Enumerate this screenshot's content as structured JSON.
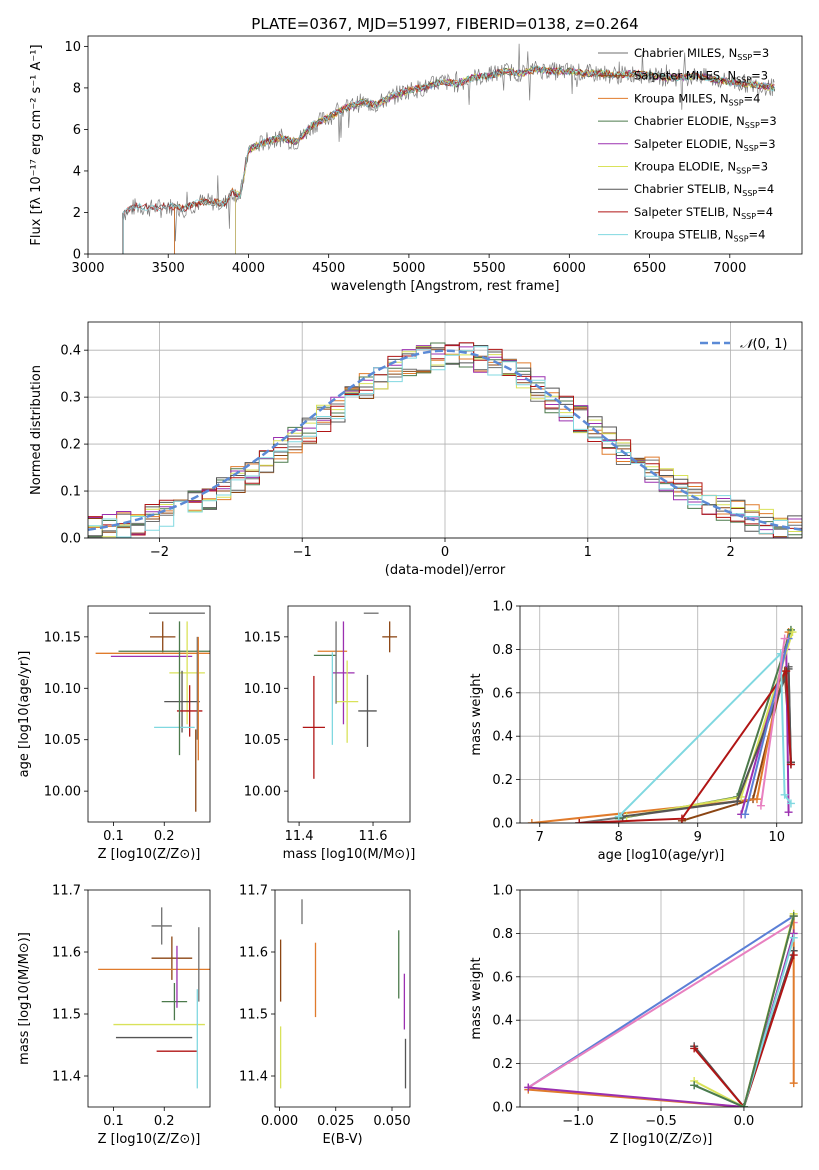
{
  "figure_title": "PLATE=0367, MJD=51997, FIBERID=0138, z=0.264",
  "colors": {
    "Chabrier MILES": "#6f6f6f",
    "Salpeter MILES": "#8b4513",
    "Kroupa MILES": "#e07b2c",
    "Chabrier ELODIE": "#4c7a4c",
    "Salpeter ELODIE": "#9b30b0",
    "Kroupa ELODIE": "#d9e25a",
    "Chabrier STELIB": "#555555",
    "Salpeter STELIB": "#b01515",
    "Kroupa STELIB": "#80d8e0",
    "blue": "#5b7fd6",
    "pink": "#e880c0"
  },
  "chart_data": [
    {
      "id": "spectrum",
      "type": "line",
      "title": "PLATE=0367, MJD=51997, FIBERID=0138, z=0.264",
      "xlabel": "wavelength [Angstrom, rest frame]",
      "ylabel": "Flux [fλ 10⁻¹⁷ erg cm⁻² s⁻¹ A⁻¹]",
      "xlim": [
        3000,
        7450
      ],
      "ylim": [
        0,
        10.5
      ],
      "xticks": [
        3000,
        3500,
        4000,
        4500,
        5000,
        5500,
        6000,
        6500,
        7000
      ],
      "yticks": [
        0,
        2,
        4,
        6,
        8,
        10
      ],
      "legend_position": "top-right",
      "continuum": {
        "x": [
          3230,
          3300,
          3400,
          3500,
          3600,
          3700,
          3800,
          3850,
          3900,
          3950,
          4000,
          4100,
          4200,
          4300,
          4400,
          4500,
          4600,
          4700,
          4800,
          4900,
          5000,
          5100,
          5200,
          5300,
          5400,
          5500,
          5600,
          5700,
          5800,
          5900,
          6000,
          6100,
          6200,
          6300,
          6400,
          6500,
          6600,
          6700,
          6800,
          6900,
          7000,
          7100,
          7200,
          7280
        ],
        "y": [
          2.0,
          2.3,
          2.2,
          2.3,
          2.2,
          2.5,
          2.5,
          2.4,
          3.0,
          2.8,
          5.0,
          5.4,
          5.6,
          5.4,
          6.2,
          6.6,
          7.0,
          7.3,
          7.2,
          7.6,
          7.9,
          8.0,
          8.3,
          8.2,
          8.5,
          8.6,
          8.8,
          8.7,
          8.9,
          8.8,
          8.8,
          8.7,
          8.7,
          8.6,
          8.7,
          8.6,
          8.5,
          8.5,
          8.6,
          8.4,
          8.3,
          8.2,
          8.1,
          8.0
        ]
      },
      "series": [
        {
          "name": "Chabrier MILES, N_SSP=3",
          "start": 3540
        },
        {
          "name": "Salpeter MILES, N_SSP=3",
          "start": 3540
        },
        {
          "name": "Kroupa MILES, N_SSP=4",
          "start": 3540
        },
        {
          "name": "Chabrier ELODIE, N_SSP=3",
          "start": 3920
        },
        {
          "name": "Salpeter ELODIE, N_SSP=3",
          "start": 3920
        },
        {
          "name": "Kroupa ELODIE, N_SSP=3",
          "start": 3920
        },
        {
          "name": "Chabrier STELIB, N_SSP=4",
          "start": 3220
        },
        {
          "name": "Salpeter STELIB, N_SSP=4",
          "start": 3220
        },
        {
          "name": "Kroupa STELIB, N_SSP=4",
          "start": 3220
        }
      ],
      "legend": [
        {
          "label": "Chabrier MILES, N",
          "sub": "SSP",
          "tail": "=3"
        },
        {
          "label": "Salpeter MILES, N",
          "sub": "SSP",
          "tail": "=3"
        },
        {
          "label": "Kroupa MILES, N",
          "sub": "SSP",
          "tail": "=4"
        },
        {
          "label": "Chabrier ELODIE, N",
          "sub": "SSP",
          "tail": "=3"
        },
        {
          "label": "Salpeter ELODIE, N",
          "sub": "SSP",
          "tail": "=3"
        },
        {
          "label": "Kroupa ELODIE, N",
          "sub": "SSP",
          "tail": "=3"
        },
        {
          "label": "Chabrier STELIB, N",
          "sub": "SSP",
          "tail": "=4"
        },
        {
          "label": "Salpeter STELIB, N",
          "sub": "SSP",
          "tail": "=4"
        },
        {
          "label": "Kroupa STELIB, N",
          "sub": "SSP",
          "tail": "=4"
        }
      ]
    },
    {
      "id": "residuals",
      "type": "line",
      "xlabel": "(data-model)/error",
      "ylabel": "Normed distribution",
      "xlim": [
        -2.5,
        2.5
      ],
      "ylim": [
        0,
        0.46
      ],
      "xticks": [
        -2,
        -1,
        0,
        1,
        2
      ],
      "yticks": [
        0.0,
        0.1,
        0.2,
        0.3,
        0.4
      ],
      "grid": true,
      "legend_position": "top-right",
      "legend": "N(0,1)",
      "gaussian": {
        "mean": 0,
        "sigma": 1
      },
      "histograms": {
        "bin_width": 0.1,
        "count": 9
      }
    },
    {
      "id": "age_vs_Z",
      "type": "scatter",
      "xlabel": "Z [log10(Z/Z⊙)]",
      "ylabel": "age  [log10(age/yr)]",
      "xlim": [
        0.05,
        0.29
      ],
      "ylim": [
        9.97,
        10.18
      ],
      "xticks": [
        0.1,
        0.2
      ],
      "yticks": [
        10.0,
        10.05,
        10.1,
        10.15
      ],
      "points": [
        {
          "x": 0.225,
          "y": 10.173,
          "xerr": 0.055,
          "yerr": 0.0
        },
        {
          "x": 0.197,
          "y": 10.15,
          "xerr": 0.025,
          "yerr": 0.015
        },
        {
          "x": 0.185,
          "y": 10.134,
          "xerr": 0.12,
          "yerr": 0.0
        },
        {
          "x": 0.21,
          "y": 10.136,
          "xerr": 0.1,
          "yerr": 0.0
        },
        {
          "x": 0.175,
          "y": 10.131,
          "xerr": 0.08,
          "yerr": 0.0
        },
        {
          "x": 0.245,
          "y": 10.115,
          "xerr": 0.035,
          "yerr": 0.05
        },
        {
          "x": 0.235,
          "y": 10.087,
          "xerr": 0.035,
          "yerr": 0.03
        },
        {
          "x": 0.25,
          "y": 10.078,
          "xerr": 0.025,
          "yerr": 0.025
        },
        {
          "x": 0.22,
          "y": 10.062,
          "xerr": 0.04,
          "yerr": 0.0
        },
        {
          "x": 0.265,
          "y": 10.1,
          "xerr": 0.0,
          "yerr": 0.05
        },
        {
          "x": 0.262,
          "y": 10.02,
          "xerr": 0.0,
          "yerr": 0.04
        },
        {
          "x": 0.267,
          "y": 10.09,
          "xerr": 0.0,
          "yerr": 0.06
        },
        {
          "x": 0.23,
          "y": 10.1,
          "xerr": 0.0,
          "yerr": 0.065
        }
      ]
    },
    {
      "id": "age_vs_mass",
      "type": "scatter",
      "xlabel": "mass [log10(M/M⊙)]",
      "ylabel": "",
      "xlim": [
        11.37,
        11.7
      ],
      "ylim": [
        9.97,
        10.18
      ],
      "xticks": [
        11.4,
        11.6
      ],
      "yticks": [
        10.0,
        10.05,
        10.1,
        10.15
      ],
      "points": [
        {
          "x": 11.595,
          "y": 10.173,
          "xerr": 0.02,
          "yerr": 0.0
        },
        {
          "x": 11.645,
          "y": 10.15,
          "xerr": 0.02,
          "yerr": 0.015
        },
        {
          "x": 11.49,
          "y": 10.136,
          "xerr": 0.04,
          "yerr": 0.0
        },
        {
          "x": 11.47,
          "y": 10.132,
          "xerr": 0.03,
          "yerr": 0.0
        },
        {
          "x": 11.52,
          "y": 10.115,
          "xerr": 0.03,
          "yerr": 0.05
        },
        {
          "x": 11.53,
          "y": 10.087,
          "xerr": 0.03,
          "yerr": 0.04
        },
        {
          "x": 11.585,
          "y": 10.078,
          "xerr": 0.025,
          "yerr": 0.035
        },
        {
          "x": 11.44,
          "y": 10.062,
          "xerr": 0.03,
          "yerr": 0.05
        },
        {
          "x": 11.49,
          "y": 10.09,
          "xerr": 0.0,
          "yerr": 0.045
        },
        {
          "x": 11.5,
          "y": 10.125,
          "xerr": 0.0,
          "yerr": 0.04
        }
      ]
    },
    {
      "id": "weight_vs_age",
      "type": "line",
      "xlabel": "age  [log10(age/yr)]",
      "ylabel": "mass weight",
      "xlim": [
        6.75,
        10.32
      ],
      "ylim": [
        0,
        1.0
      ],
      "xticks": [
        7,
        8,
        9,
        10
      ],
      "yticks": [
        0.0,
        0.2,
        0.4,
        0.6,
        0.8,
        1.0
      ],
      "grid": true,
      "series": [
        {
          "name": "Chabrier MILES",
          "x": [
            7.5,
            9.5,
            10.15,
            10.18
          ],
          "y": [
            0.0,
            0.1,
            0.72,
            0.27
          ]
        },
        {
          "name": "Salpeter MILES",
          "x": [
            8.8,
            9.7,
            10.1,
            10.18
          ],
          "y": [
            0.01,
            0.11,
            0.7,
            0.28
          ]
        },
        {
          "name": "Kroupa MILES",
          "x": [
            6.9,
            9.75,
            10.15
          ],
          "y": [
            0.0,
            0.11,
            0.88
          ]
        },
        {
          "name": "Chabrier ELODIE",
          "x": [
            8.0,
            9.5,
            10.18
          ],
          "y": [
            0.02,
            0.12,
            0.89
          ]
        },
        {
          "name": "Salpeter ELODIE",
          "x": [
            9.55,
            10.12,
            10.15
          ],
          "y": [
            0.04,
            0.8,
            0.05
          ]
        },
        {
          "name": "Kroupa ELODIE",
          "x": [
            8.1,
            9.55,
            10.2
          ],
          "y": [
            0.03,
            0.12,
            0.88
          ]
        },
        {
          "name": "Chabrier STELIB",
          "x": [
            8.05,
            9.5,
            10.15,
            10.18
          ],
          "y": [
            0.03,
            0.1,
            0.71,
            0.28
          ]
        },
        {
          "name": "Salpeter STELIB",
          "x": [
            7.5,
            8.8,
            10.12,
            10.18
          ],
          "y": [
            0.0,
            0.02,
            0.7,
            0.27
          ]
        },
        {
          "name": "Kroupa STELIB",
          "x": [
            8.0,
            10.05,
            10.1,
            10.18
          ],
          "y": [
            0.03,
            0.78,
            0.13,
            0.09
          ]
        },
        {
          "name": "blue",
          "x": [
            9.6,
            10.15
          ],
          "y": [
            0.04,
            0.85
          ]
        },
        {
          "name": "pink",
          "x": [
            9.8,
            10.1
          ],
          "y": [
            0.08,
            0.85
          ]
        }
      ]
    },
    {
      "id": "mass_vs_Z",
      "type": "scatter",
      "xlabel": "Z [log10(Z/Z⊙)]",
      "ylabel": "mass [log10(M/M⊙)]",
      "xlim": [
        0.05,
        0.29
      ],
      "ylim": [
        11.35,
        11.7
      ],
      "xticks": [
        0.1,
        0.2
      ],
      "yticks": [
        11.4,
        11.5,
        11.6,
        11.7
      ],
      "points": [
        {
          "x": 0.195,
          "y": 11.642,
          "xerr": 0.02,
          "yerr": 0.03
        },
        {
          "x": 0.215,
          "y": 11.59,
          "xerr": 0.04,
          "yerr": 0.035
        },
        {
          "x": 0.18,
          "y": 11.572,
          "xerr": 0.11,
          "yerr": 0.0
        },
        {
          "x": 0.22,
          "y": 11.52,
          "xerr": 0.025,
          "yerr": 0.03
        },
        {
          "x": 0.225,
          "y": 11.56,
          "xerr": 0.0,
          "yerr": 0.05
        },
        {
          "x": 0.19,
          "y": 11.483,
          "xerr": 0.09,
          "yerr": 0.0
        },
        {
          "x": 0.18,
          "y": 11.462,
          "xerr": 0.075,
          "yerr": 0.0
        },
        {
          "x": 0.225,
          "y": 11.44,
          "xerr": 0.04,
          "yerr": 0.0
        },
        {
          "x": 0.265,
          "y": 11.46,
          "xerr": 0.0,
          "yerr": 0.08
        },
        {
          "x": 0.268,
          "y": 11.58,
          "xerr": 0.0,
          "yerr": 0.06
        }
      ]
    },
    {
      "id": "mass_vs_EBV",
      "type": "scatter",
      "xlabel": "E(B-V)",
      "ylabel": "",
      "xlim": [
        -0.002,
        0.058
      ],
      "ylim": [
        11.35,
        11.7
      ],
      "xticks": [
        0.0,
        0.025,
        0.05
      ],
      "yticks": [
        11.4,
        11.5,
        11.6,
        11.7
      ],
      "points": [
        {
          "x": 0.01,
          "y": 11.665,
          "xerr": 0.0,
          "yerr": 0.02
        },
        {
          "x": 0.0005,
          "y": 11.57,
          "xerr": 0.0,
          "yerr": 0.05
        },
        {
          "x": 0.016,
          "y": 11.555,
          "xerr": 0.0,
          "yerr": 0.06
        },
        {
          "x": 0.053,
          "y": 11.58,
          "xerr": 0.0,
          "yerr": 0.055
        },
        {
          "x": 0.0555,
          "y": 11.52,
          "xerr": 0.0,
          "yerr": 0.045
        },
        {
          "x": 0.0005,
          "y": 11.43,
          "xerr": 0.0,
          "yerr": 0.05
        },
        {
          "x": 0.056,
          "y": 11.42,
          "xerr": 0.0,
          "yerr": 0.04
        }
      ]
    },
    {
      "id": "weight_vs_Z",
      "type": "line",
      "xlabel": "Z [log10(Z/Z⊙)]",
      "ylabel": "mass weight",
      "xlim": [
        -1.35,
        0.35
      ],
      "ylim": [
        0,
        1.0
      ],
      "xticks": [
        -1.0,
        -0.5,
        0.0
      ],
      "yticks": [
        0.0,
        0.2,
        0.4,
        0.6,
        0.8,
        1.0
      ],
      "grid": true,
      "series": [
        {
          "name": "blue",
          "x": [
            -1.3,
            0.3
          ],
          "y": [
            0.09,
            0.88
          ]
        },
        {
          "name": "pink",
          "x": [
            -1.3,
            0.3
          ],
          "y": [
            0.09,
            0.85
          ]
        },
        {
          "name": "Kroupa MILES",
          "x": [
            -1.3,
            0.0,
            0.3,
            0.3
          ],
          "y": [
            0.08,
            0.0,
            0.88,
            0.11
          ]
        },
        {
          "name": "Salpeter ELODIE",
          "x": [
            -1.3,
            0.0,
            0.3
          ],
          "y": [
            0.09,
            0.0,
            0.8
          ]
        },
        {
          "name": "Chabrier STELIB",
          "x": [
            -0.3,
            0.0,
            0.3
          ],
          "y": [
            0.28,
            0.0,
            0.72
          ]
        },
        {
          "name": "Salpeter STELIB",
          "x": [
            -0.3,
            0.0,
            0.3
          ],
          "y": [
            0.27,
            0.0,
            0.7
          ]
        },
        {
          "name": "Kroupa ELODIE",
          "x": [
            -0.3,
            0.0,
            0.3
          ],
          "y": [
            0.12,
            0.0,
            0.89
          ]
        },
        {
          "name": "Kroupa STELIB",
          "x": [
            -0.3,
            0.0,
            0.3
          ],
          "y": [
            0.1,
            0.0,
            0.78
          ]
        },
        {
          "name": "Chabrier ELODIE",
          "x": [
            -0.3,
            0.0,
            0.3
          ],
          "y": [
            0.1,
            0.0,
            0.88
          ]
        }
      ]
    }
  ]
}
